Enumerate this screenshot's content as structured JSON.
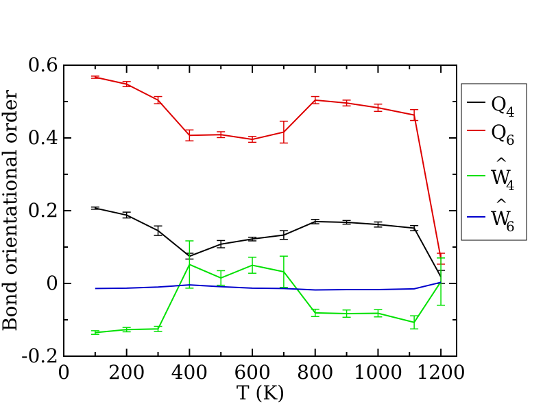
{
  "chart_data": {
    "type": "line",
    "xlabel": "T (K)",
    "ylabel": "Bond orientational order",
    "xlim": [
      0,
      1250
    ],
    "ylim": [
      -0.2,
      0.6
    ],
    "xticks": [
      0,
      200,
      400,
      600,
      800,
      1000,
      1200
    ],
    "xtick_labels": [
      "0",
      "200",
      "400",
      "600",
      "800",
      "1000",
      "1200"
    ],
    "yticks": [
      -0.2,
      0,
      0.2,
      0.4,
      0.6
    ],
    "ytick_labels": [
      "-0.2",
      "0",
      "0.2",
      "0.4",
      "0.6"
    ],
    "grid": false,
    "legend_position": "right",
    "x": [
      100,
      200,
      300,
      400,
      500,
      600,
      700,
      800,
      900,
      1000,
      1115,
      1200
    ],
    "series": [
      {
        "name": "Q",
        "subscript": "4",
        "hat": false,
        "color": "#000000",
        "values": [
          0.207,
          0.188,
          0.145,
          0.075,
          0.108,
          0.122,
          0.133,
          0.17,
          0.168,
          0.162,
          0.152,
          0.018
        ],
        "errors": [
          0.003,
          0.008,
          0.013,
          0.008,
          0.01,
          0.005,
          0.012,
          0.006,
          0.005,
          0.007,
          0.007,
          0.018
        ]
      },
      {
        "name": "Q",
        "subscript": "6",
        "hat": false,
        "color": "#dd0000",
        "values": [
          0.567,
          0.548,
          0.504,
          0.407,
          0.409,
          0.396,
          0.416,
          0.504,
          0.496,
          0.483,
          0.463,
          0.068
        ],
        "errors": [
          0.003,
          0.007,
          0.01,
          0.015,
          0.008,
          0.008,
          0.03,
          0.01,
          0.008,
          0.01,
          0.015,
          0.015
        ]
      },
      {
        "name": "W",
        "subscript": "4",
        "hat": true,
        "color": "#00e000",
        "values": [
          -0.135,
          -0.127,
          -0.125,
          0.052,
          0.015,
          0.05,
          0.032,
          -0.081,
          -0.083,
          -0.082,
          -0.107,
          0.005
        ],
        "errors": [
          0.005,
          0.006,
          0.007,
          0.065,
          0.02,
          0.022,
          0.043,
          0.01,
          0.01,
          0.01,
          0.018,
          0.065
        ]
      },
      {
        "name": "W",
        "subscript": "6",
        "hat": true,
        "color": "#0000cc",
        "values": [
          -0.014,
          -0.013,
          -0.01,
          -0.004,
          -0.009,
          -0.013,
          -0.014,
          -0.018,
          -0.017,
          -0.017,
          -0.015,
          0.003
        ],
        "errors": [
          0,
          0,
          0,
          0,
          0,
          0,
          0,
          0,
          0,
          0,
          0,
          0
        ]
      }
    ]
  }
}
